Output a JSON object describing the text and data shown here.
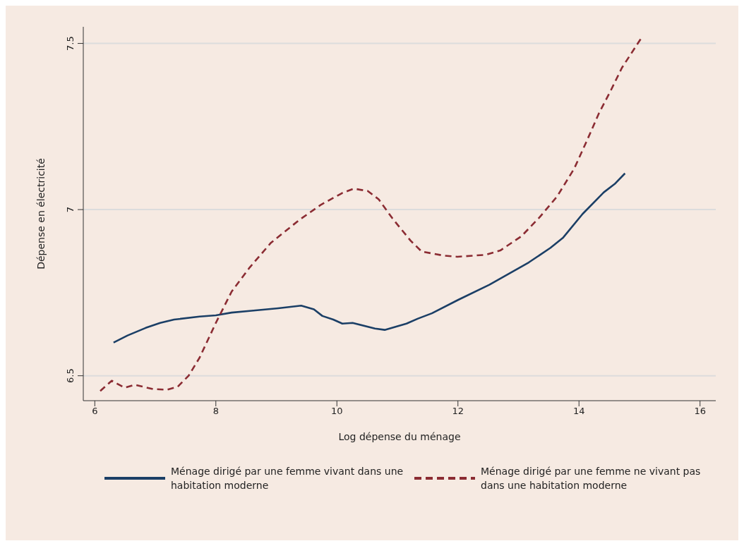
{
  "chart_data": {
    "type": "line",
    "xlabel": "Log dépense du ménage",
    "ylabel": "Dépense en électricité",
    "xlim": [
      5.81,
      16.26
    ],
    "xticks": [
      6,
      8,
      10,
      12,
      14,
      16
    ],
    "ylim": [
      6.425,
      7.55
    ],
    "yticks": [
      6.5,
      7,
      7.5
    ],
    "grid": "y",
    "legend": "bottom",
    "marker": "none",
    "series": [
      {
        "name": "Ménage dirigé par une femme vivant dans une habitation moderne",
        "color": "#1b3f66",
        "line_style": "solid",
        "x": [
          6.31,
          6.54,
          6.84,
          7.08,
          7.31,
          7.73,
          8.0,
          8.26,
          8.56,
          9.03,
          9.41,
          9.62,
          9.76,
          9.94,
          10.09,
          10.26,
          10.63,
          10.79,
          11.15,
          11.34,
          11.57,
          12.0,
          12.52,
          13.17,
          13.53,
          13.74,
          14.06,
          14.41,
          14.59,
          14.76
        ],
        "values": [
          6.6,
          6.621,
          6.644,
          6.659,
          6.669,
          6.678,
          6.682,
          6.69,
          6.695,
          6.703,
          6.711,
          6.7,
          6.68,
          6.669,
          6.657,
          6.659,
          6.642,
          6.638,
          6.657,
          6.672,
          6.688,
          6.728,
          6.774,
          6.841,
          6.885,
          6.916,
          6.987,
          7.052,
          7.077,
          7.109
        ]
      },
      {
        "name": "Ménage dirigé par une femme ne vivant pas dans une habitation moderne",
        "color": "#8b2c33",
        "line_style": "dashed",
        "x": [
          6.09,
          6.28,
          6.49,
          6.66,
          6.96,
          7.2,
          7.37,
          7.55,
          7.73,
          8.0,
          8.26,
          8.56,
          8.91,
          9.38,
          9.74,
          10.09,
          10.28,
          10.51,
          10.69,
          10.92,
          11.22,
          11.4,
          11.75,
          11.99,
          12.46,
          12.7,
          13.05,
          13.35,
          13.64,
          13.92,
          14.12,
          14.33,
          14.53,
          14.71,
          15.04
        ],
        "values": [
          6.454,
          6.485,
          6.464,
          6.473,
          6.46,
          6.458,
          6.467,
          6.5,
          6.554,
          6.659,
          6.753,
          6.826,
          6.9,
          6.969,
          7.015,
          7.05,
          7.063,
          7.056,
          7.031,
          6.973,
          6.906,
          6.874,
          6.862,
          6.858,
          6.864,
          6.877,
          6.92,
          6.977,
          7.04,
          7.123,
          7.203,
          7.29,
          7.36,
          7.427,
          7.519
        ]
      }
    ]
  }
}
